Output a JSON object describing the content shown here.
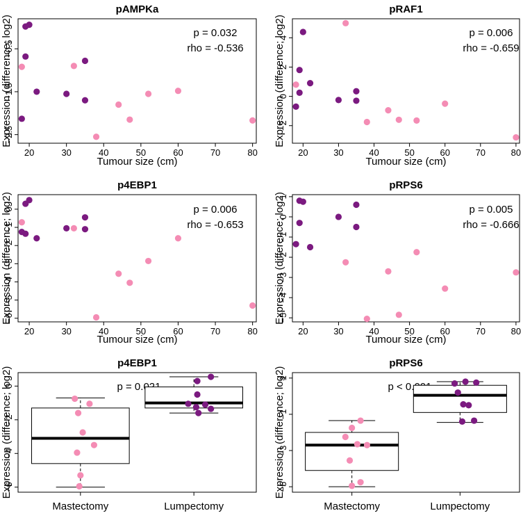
{
  "figure": {
    "ylabel": "Expression (difference; log2)",
    "colors": {
      "dark": "#7b1a80",
      "light": "#f48cb4",
      "axis": "#000000",
      "box": "#ffffff"
    }
  },
  "chart_data": [
    {
      "id": "pAMPKa",
      "type": "scatter",
      "title": "pAMPKa",
      "xlabel": "Tumour size (cm)",
      "ylabel": "Expression (difference; log2)",
      "xlim": [
        17,
        81
      ],
      "ylim": [
        -2.7,
        0.2
      ],
      "xticks": [
        20,
        30,
        40,
        50,
        60,
        70,
        80
      ],
      "yticks": [
        -2.5,
        -1.5,
        -0.5
      ],
      "annotations": [
        "p = 0.032",
        "rho = -0.536"
      ],
      "series": [
        {
          "name": "Mastectomy",
          "color": "light",
          "points": [
            [
              18,
              -0.92
            ],
            [
              32,
              -0.9
            ],
            [
              38,
              -2.55
            ],
            [
              44,
              -1.8
            ],
            [
              47,
              -2.15
            ],
            [
              52,
              -1.55
            ],
            [
              60,
              -1.48
            ],
            [
              80,
              -2.17
            ]
          ]
        },
        {
          "name": "Lumpectomy",
          "color": "dark",
          "points": [
            [
              18,
              -2.13
            ],
            [
              19,
              -0.68
            ],
            [
              19,
              0.02
            ],
            [
              20,
              0.06
            ],
            [
              22,
              -1.5
            ],
            [
              30,
              -1.55
            ],
            [
              35,
              -0.78
            ],
            [
              35,
              -1.7
            ]
          ]
        }
      ]
    },
    {
      "id": "pRAF1",
      "type": "scatter",
      "title": "pRAF1",
      "xlabel": "Tumour size (cm)",
      "ylabel": "Expression (difference; log2)",
      "xlim": [
        17,
        81
      ],
      "ylim": [
        -3.2,
        5.3
      ],
      "xticks": [
        20,
        30,
        40,
        50,
        60,
        70,
        80
      ],
      "yticks": [
        -2,
        0,
        2,
        4
      ],
      "annotations": [
        "p = 0.006",
        "rho = -0.659"
      ],
      "series": [
        {
          "name": "Mastectomy",
          "color": "light",
          "points": [
            [
              18,
              0.8
            ],
            [
              32,
              5.0
            ],
            [
              38,
              -1.75
            ],
            [
              44,
              -0.95
            ],
            [
              47,
              -1.6
            ],
            [
              52,
              -1.65
            ],
            [
              60,
              -0.5
            ],
            [
              80,
              -2.8
            ]
          ]
        },
        {
          "name": "Lumpectomy",
          "color": "dark",
          "points": [
            [
              18,
              -0.7
            ],
            [
              19,
              1.8
            ],
            [
              19,
              0.25
            ],
            [
              20,
              4.4
            ],
            [
              22,
              0.9
            ],
            [
              30,
              -0.25
            ],
            [
              35,
              0.35
            ],
            [
              35,
              -0.3
            ]
          ]
        }
      ]
    },
    {
      "id": "p4EBP1-scatter",
      "type": "scatter",
      "title": "p4EBP1",
      "xlabel": "Tumour size (cm)",
      "ylabel": "Expression (difference; log2)",
      "xlim": [
        17,
        81
      ],
      "ylim": [
        -6.2,
        0.8
      ],
      "xticks": [
        20,
        30,
        40,
        50,
        60,
        70,
        80
      ],
      "yticks": [
        -6,
        -5,
        -4,
        -3,
        -2,
        -1,
        0
      ],
      "annotations": [
        "p = 0.006",
        "rho = -0.653"
      ],
      "series": [
        {
          "name": "Mastectomy",
          "color": "light",
          "points": [
            [
              18,
              -0.72
            ],
            [
              32,
              -1.05
            ],
            [
              38,
              -5.95
            ],
            [
              44,
              -3.55
            ],
            [
              47,
              -4.05
            ],
            [
              52,
              -2.85
            ],
            [
              60,
              -1.6
            ],
            [
              80,
              -5.3
            ]
          ]
        },
        {
          "name": "Lumpectomy",
          "color": "dark",
          "points": [
            [
              18,
              -1.25
            ],
            [
              19,
              0.3
            ],
            [
              19,
              -1.35
            ],
            [
              20,
              0.5
            ],
            [
              22,
              -1.6
            ],
            [
              30,
              -1.05
            ],
            [
              35,
              -0.45
            ],
            [
              35,
              -1.1
            ]
          ]
        }
      ]
    },
    {
      "id": "pRPS6-scatter",
      "type": "scatter",
      "title": "pRPS6",
      "xlabel": "Tumour size (cm)",
      "ylabel": "Expression (difference; log2)",
      "xlim": [
        17,
        81
      ],
      "ylim": [
        -5.2,
        1.1
      ],
      "xticks": [
        20,
        30,
        40,
        50,
        60,
        70,
        80
      ],
      "yticks": [
        -5,
        -4,
        -3,
        -2,
        -1,
        0,
        1
      ],
      "annotations": [
        "p = 0.005",
        "rho = -0.666"
      ],
      "series": [
        {
          "name": "Mastectomy",
          "color": "light",
          "points": [
            [
              32,
              -2.25
            ],
            [
              38,
              -5.05
            ],
            [
              44,
              -2.7
            ],
            [
              47,
              -4.85
            ],
            [
              52,
              -1.75
            ],
            [
              60,
              -3.55
            ],
            [
              80,
              -2.75
            ]
          ]
        },
        {
          "name": "Lumpectomy",
          "color": "dark",
          "points": [
            [
              18,
              -1.35
            ],
            [
              19,
              0.8
            ],
            [
              19,
              -0.3
            ],
            [
              20,
              0.75
            ],
            [
              22,
              -1.5
            ],
            [
              30,
              0.0
            ],
            [
              35,
              0.6
            ],
            [
              35,
              -0.5
            ]
          ]
        }
      ]
    },
    {
      "id": "p4EBP1-box",
      "type": "box",
      "title": "p4EBP1",
      "ylabel": "Expression (difference; log2)",
      "ylim": [
        -6.3,
        0.8
      ],
      "yticks": [
        -6,
        -4,
        -2,
        0
      ],
      "annotations": [
        "p = 0.021"
      ],
      "categories": [
        "Mastectomy",
        "Lumpectomy"
      ],
      "boxes": [
        {
          "category": "Mastectomy",
          "color": "light",
          "whisker_low": -6.0,
          "q1": -4.6,
          "median": -3.1,
          "q3": -1.3,
          "whisker_high": -0.7,
          "points": [
            [
              -0.05,
              -0.75
            ],
            [
              0.08,
              -1.05
            ],
            [
              -0.02,
              -1.6
            ],
            [
              0.02,
              -2.75
            ],
            [
              0.12,
              -3.5
            ],
            [
              -0.03,
              -3.95
            ],
            [
              0.0,
              -5.3
            ],
            [
              -0.01,
              -5.95
            ]
          ]
        },
        {
          "category": "Lumpectomy",
          "color": "dark",
          "whisker_low": -1.6,
          "q1": -1.3,
          "median": -1.0,
          "q3": -0.05,
          "whisker_high": 0.55,
          "points": [
            [
              0.15,
              0.55
            ],
            [
              0.03,
              0.3
            ],
            [
              0.03,
              -0.5
            ],
            [
              -0.05,
              -1.05
            ],
            [
              0.1,
              -1.1
            ],
            [
              0.02,
              -1.25
            ],
            [
              0.15,
              -1.35
            ],
            [
              0.04,
              -1.6
            ]
          ]
        }
      ]
    },
    {
      "id": "pRPS6-box",
      "type": "box",
      "title": "pRPS6",
      "ylabel": "Expression (difference; log2)",
      "ylim": [
        -5.3,
        1.3
      ],
      "yticks": [
        -5,
        -3,
        -1,
        1
      ],
      "annotations": [
        "p < 0.001"
      ],
      "categories": [
        "Mastectomy",
        "Lumpectomy"
      ],
      "boxes": [
        {
          "category": "Mastectomy",
          "color": "light",
          "whisker_low": -5.0,
          "q1": -4.1,
          "median": -2.7,
          "q3": -2.0,
          "whisker_high": -1.35,
          "points": [
            [
              0.08,
              -1.35
            ],
            [
              0.0,
              -1.75
            ],
            [
              -0.06,
              -2.25
            ],
            [
              0.05,
              -2.65
            ],
            [
              0.14,
              -2.7
            ],
            [
              -0.02,
              -3.55
            ],
            [
              0.08,
              -4.75
            ],
            [
              0.0,
              -4.95
            ]
          ]
        },
        {
          "category": "Lumpectomy",
          "color": "dark",
          "whisker_low": -1.45,
          "q1": -0.9,
          "median": 0.05,
          "q3": 0.6,
          "whisker_high": 0.8,
          "points": [
            [
              0.05,
              0.8
            ],
            [
              0.15,
              0.75
            ],
            [
              -0.05,
              0.7
            ],
            [
              -0.02,
              0.2
            ],
            [
              0.08,
              -0.5
            ],
            [
              0.03,
              -0.45
            ],
            [
              0.13,
              -1.35
            ],
            [
              0.02,
              -1.4
            ]
          ]
        }
      ]
    }
  ]
}
